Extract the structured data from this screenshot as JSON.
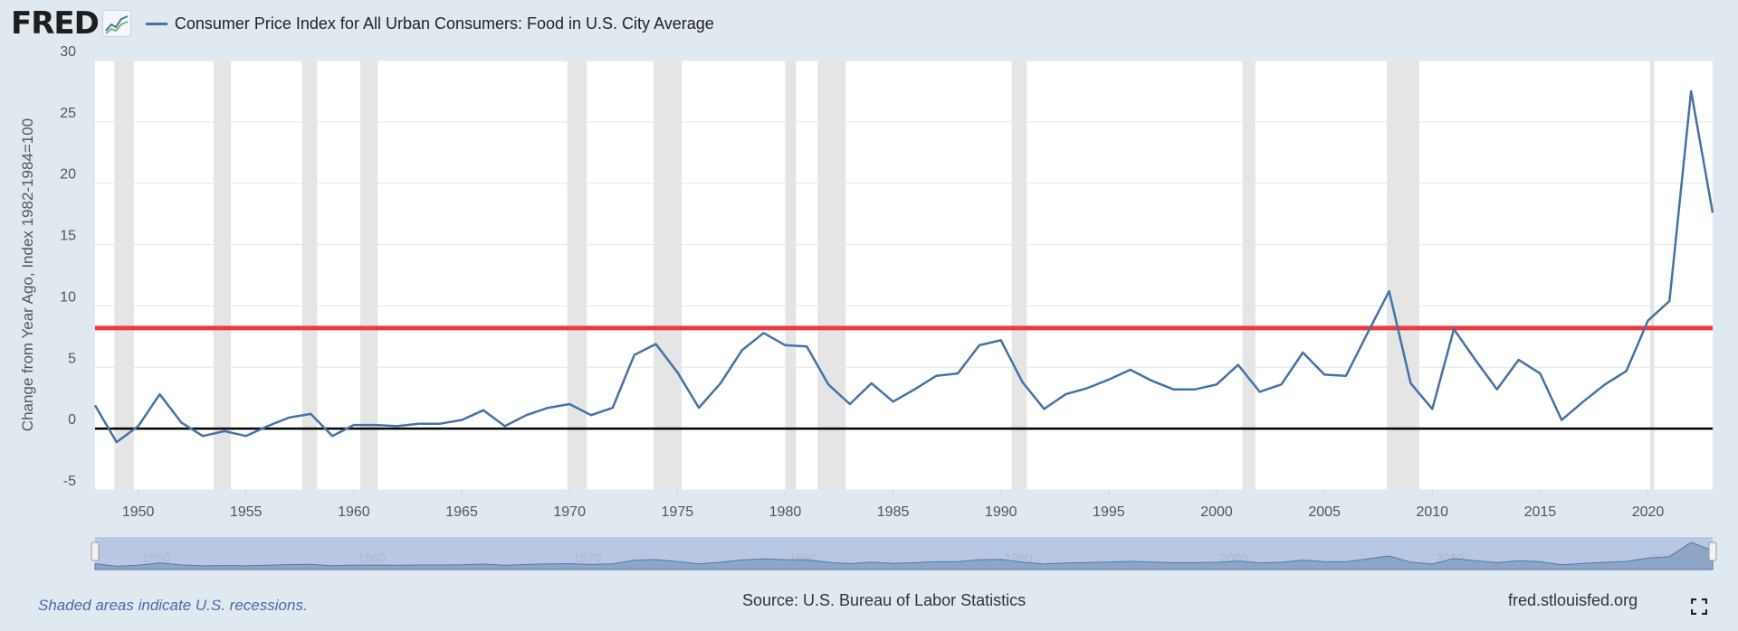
{
  "header": {
    "logo_text": "FRED",
    "logo_icon": "line-chart-icon"
  },
  "chart_data": {
    "type": "line",
    "title": "Consumer Price Index for All Urban Consumers: Food in U.S. City Average",
    "ylabel": "Change from Year Ago, Index 1982-1984=100",
    "xlabel": "",
    "xlim": [
      1948,
      2023
    ],
    "ylim": [
      -5,
      30
    ],
    "y_ticks": [
      -5,
      0,
      5,
      10,
      15,
      20,
      25,
      30
    ],
    "y_tick_labels": [
      "-5",
      "0",
      "5",
      "10",
      "15",
      "20",
      "25",
      "30"
    ],
    "x_ticks": [
      1950,
      1955,
      1960,
      1965,
      1970,
      1975,
      1980,
      1985,
      1990,
      1995,
      2000,
      2005,
      2010,
      2015,
      2020
    ],
    "x_tick_labels": [
      "1950",
      "1955",
      "1960",
      "1965",
      "1970",
      "1975",
      "1980",
      "1985",
      "1990",
      "1995",
      "2000",
      "2005",
      "2010",
      "2015",
      "2020"
    ],
    "series": [
      {
        "name": "Consumer Price Index for All Urban Consumers: Food in U.S. City Average",
        "color": "#4572a7",
        "x": [
          1948,
          1949,
          1950,
          1951,
          1952,
          1953,
          1954,
          1955,
          1956,
          1957,
          1958,
          1959,
          1960,
          1961,
          1962,
          1963,
          1964,
          1965,
          1966,
          1967,
          1968,
          1969,
          1970,
          1971,
          1972,
          1973,
          1974,
          1975,
          1976,
          1977,
          1978,
          1979,
          1980,
          1981,
          1982,
          1983,
          1984,
          1985,
          1986,
          1987,
          1988,
          1989,
          1990,
          1991,
          1992,
          1993,
          1994,
          1995,
          1996,
          1997,
          1998,
          1999,
          2000,
          2001,
          2002,
          2003,
          2004,
          2005,
          2006,
          2007,
          2008,
          2009,
          2010,
          2011,
          2012,
          2013,
          2014,
          2015,
          2016,
          2017,
          2018,
          2019,
          2020,
          2021,
          2022,
          2023
        ],
        "values": [
          1.9,
          -1.1,
          0.2,
          2.8,
          0.5,
          -0.6,
          -0.2,
          -0.6,
          0.2,
          0.9,
          1.2,
          -0.6,
          0.3,
          0.3,
          0.2,
          0.4,
          0.4,
          0.7,
          1.5,
          0.2,
          1.1,
          1.7,
          2.0,
          1.1,
          1.7,
          6.0,
          6.9,
          4.6,
          1.7,
          3.7,
          6.4,
          7.8,
          6.8,
          6.7,
          3.6,
          2.0,
          3.7,
          2.2,
          3.2,
          4.3,
          4.5,
          6.8,
          7.2,
          3.8,
          1.6,
          2.8,
          3.3,
          4.0,
          4.8,
          3.9,
          3.2,
          3.2,
          3.6,
          5.2,
          3.0,
          3.6,
          6.2,
          4.4,
          4.3,
          7.8,
          11.2,
          3.7,
          1.6,
          8.1,
          5.6,
          3.2,
          5.6,
          4.5,
          0.7,
          2.2,
          3.6,
          4.7,
          8.8,
          10.4,
          27.5,
          17.6
        ]
      }
    ],
    "reference_lines": [
      {
        "name": "threshold-line",
        "y": 8.2,
        "color": "#ee3b40"
      },
      {
        "name": "zero-line",
        "y": 0,
        "color": "#000000"
      }
    ],
    "recessions": [
      [
        1948.9,
        1949.8
      ],
      [
        1953.5,
        1954.3
      ],
      [
        1957.6,
        1958.3
      ],
      [
        1960.3,
        1961.1
      ],
      [
        1969.9,
        1970.8
      ],
      [
        1973.9,
        1975.2
      ],
      [
        1980.0,
        1980.5
      ],
      [
        1981.5,
        1982.8
      ],
      [
        1990.5,
        1991.2
      ],
      [
        2001.2,
        2001.8
      ],
      [
        2007.9,
        2009.4
      ],
      [
        2020.1,
        2020.3
      ]
    ],
    "grid": true,
    "legend_position": "top-left"
  },
  "navigator": {
    "tick_labels": [
      "1950",
      "1960",
      "1970",
      "1980",
      "1990",
      "2000",
      "2010",
      "2020"
    ]
  },
  "footer": {
    "recession_note": "Shaded areas indicate U.S. recessions.",
    "source": "Source: U.S. Bureau of Labor Statistics",
    "site": "fred.stlouisfed.org",
    "fullscreen_icon": "fullscreen-icon"
  },
  "colors": {
    "background": "#e1e9f0",
    "plot_background": "#ffffff",
    "recession_shade": "#e5e5e5",
    "series": "#4572a7",
    "threshold": "#ee3b40",
    "navigator_fill": "#b8c8e2"
  }
}
